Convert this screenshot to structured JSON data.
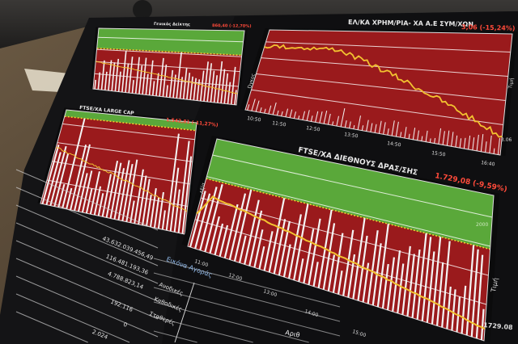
{
  "panels": {
    "top_left": {
      "title": "Γενικός Δείκτης",
      "value": "860,40 (-12,70%)"
    },
    "top_right": {
      "title": "ΕΛ/ΚΑ ΧΡΗΜ/ΡΙΑ- ΧΑ Α.Ε ΣΥΜ/ΧΩΝ",
      "value": "3,06 (-15,24%)",
      "ticks": [
        "10:50",
        "11:50",
        "12:50",
        "13:50",
        "14:50",
        "15:50",
        "16:40"
      ],
      "last": "3.06",
      "axis_left": "Όγκος",
      "axis_right": "Τιμή"
    },
    "mid_left": {
      "title": "FTSE/ΧΑ LARGE CAP",
      "value": "1.542,81 (-11,27%)"
    },
    "main": {
      "title": "FTSE/ΧΑ ΔΙΕΘΝΟΥΣ ΔΡΑΣ/ΣΗΣ",
      "value": "1.729,08 (-9,59%)",
      "ticks": [
        "11:00",
        "12:00",
        "13:00",
        "14:00",
        "15:00"
      ],
      "level": "2000",
      "last": "1729.08",
      "axis_left": "Αξία",
      "axis_right": "Τιμή"
    }
  },
  "stats_table": {
    "values": [
      "43.632.039.456,49",
      "116.481.193,36",
      "4.788.823,14",
      "192.116",
      "0",
      "2.024"
    ]
  },
  "market_table": {
    "title": "Εικόνα Αγοράς",
    "rows": [
      "Ανοδικές",
      "Καθοδικές",
      "Σταθερές"
    ],
    "footer": "Αριθ"
  },
  "colors": {
    "up_zone": "#5aa83a",
    "down_zone": "#9a1a1c",
    "price_line": "#f2c230",
    "change_text": "#ff4a3a"
  }
}
